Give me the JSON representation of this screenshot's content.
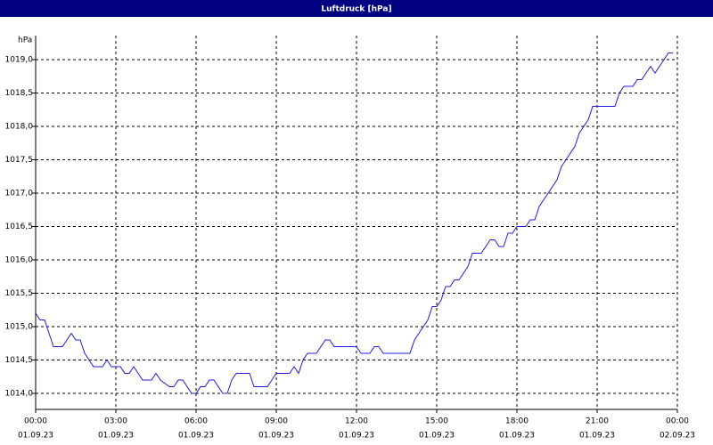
{
  "chart_data": {
    "type": "line",
    "title": "Luftdruck [hPa]",
    "y_label": "hPa",
    "x": [
      0,
      10,
      20,
      30,
      40,
      60,
      70,
      80,
      90,
      100,
      110,
      120,
      130,
      150,
      160,
      170,
      190,
      200,
      210,
      220,
      230,
      240,
      260,
      270,
      280,
      300,
      310,
      320,
      330,
      340,
      350,
      360,
      370,
      380,
      390,
      400,
      410,
      420,
      430,
      440,
      450,
      480,
      490,
      520,
      530,
      540,
      570,
      580,
      590,
      600,
      610,
      630,
      650,
      660,
      670,
      720,
      730,
      750,
      760,
      770,
      780,
      840,
      850,
      860,
      870,
      880,
      890,
      900,
      910,
      920,
      930,
      940,
      950,
      960,
      970,
      980,
      1000,
      1010,
      1020,
      1030,
      1040,
      1050,
      1060,
      1070,
      1080,
      1100,
      1110,
      1120,
      1130,
      1140,
      1150,
      1160,
      1170,
      1180,
      1190,
      1200,
      1210,
      1220,
      1230,
      1240,
      1250,
      1300,
      1310,
      1320,
      1340,
      1350,
      1360,
      1370,
      1380,
      1390,
      1400,
      1410,
      1420,
      1430
    ],
    "series": [
      {
        "name": "Luftdruck",
        "color": "#1c1ce0",
        "values": [
          1015.2,
          1015.1,
          1015.1,
          1014.9,
          1014.7,
          1014.7,
          1014.8,
          1014.9,
          1014.8,
          1014.8,
          1014.6,
          1014.5,
          1014.4,
          1014.4,
          1014.5,
          1014.4,
          1014.4,
          1014.3,
          1014.3,
          1014.4,
          1014.3,
          1014.2,
          1014.2,
          1014.3,
          1014.2,
          1014.1,
          1014.1,
          1014.2,
          1014.2,
          1014.1,
          1014.0,
          1014.0,
          1014.1,
          1014.1,
          1014.2,
          1014.2,
          1014.1,
          1014.0,
          1014.0,
          1014.2,
          1014.3,
          1014.3,
          1014.1,
          1014.1,
          1014.2,
          1014.3,
          1014.3,
          1014.4,
          1014.3,
          1014.5,
          1014.6,
          1014.6,
          1014.8,
          1014.8,
          1014.7,
          1014.7,
          1014.6,
          1014.6,
          1014.7,
          1014.7,
          1014.6,
          1014.6,
          1014.8,
          1014.9,
          1015.0,
          1015.1,
          1015.3,
          1015.3,
          1015.4,
          1015.6,
          1015.6,
          1015.7,
          1015.7,
          1015.8,
          1015.9,
          1016.1,
          1016.1,
          1016.2,
          1016.3,
          1016.3,
          1016.2,
          1016.2,
          1016.4,
          1016.4,
          1016.5,
          1016.5,
          1016.6,
          1016.6,
          1016.8,
          1016.9,
          1017.0,
          1017.1,
          1017.2,
          1017.4,
          1017.5,
          1017.6,
          1017.7,
          1017.9,
          1018.0,
          1018.1,
          1018.3,
          1018.3,
          1018.5,
          1018.6,
          1018.6,
          1018.7,
          1018.7,
          1018.8,
          1018.9,
          1018.8,
          1018.9,
          1019.0,
          1019.1,
          1019.1
        ]
      }
    ],
    "xlim": [
      0,
      1440
    ],
    "xticks": [
      {
        "value": 0,
        "label": "00:00"
      },
      {
        "value": 180,
        "label": "03:00"
      },
      {
        "value": 360,
        "label": "06:00"
      },
      {
        "value": 540,
        "label": "09:00"
      },
      {
        "value": 720,
        "label": "12:00"
      },
      {
        "value": 900,
        "label": "15:00"
      },
      {
        "value": 1080,
        "label": "18:00"
      },
      {
        "value": 1260,
        "label": "21:00"
      },
      {
        "value": 1440,
        "label": "00:00"
      }
    ],
    "xtick_dates": [
      "01.09.23",
      "01.09.23",
      "01.09.23",
      "01.09.23",
      "01.09.23",
      "01.09.23",
      "01.09.23",
      "01.09.23",
      "02.09.23"
    ],
    "ylim": [
      1013.76,
      1019.36
    ],
    "yticks": [
      {
        "value": 1014,
        "label": "1014,0"
      },
      {
        "value": 1014.5,
        "label": "1014,5"
      },
      {
        "value": 1015,
        "label": "1015,0"
      },
      {
        "value": 1015.5,
        "label": "1015,5"
      },
      {
        "value": 1016,
        "label": "1016,0"
      },
      {
        "value": 1016.5,
        "label": "1016,5"
      },
      {
        "value": 1017,
        "label": "1017,0"
      },
      {
        "value": 1017.5,
        "label": "1017,5"
      },
      {
        "value": 1018,
        "label": "1018,0"
      },
      {
        "value": 1018.5,
        "label": "1018,5"
      },
      {
        "value": 1019,
        "label": "1019,0"
      }
    ],
    "grid": true
  }
}
